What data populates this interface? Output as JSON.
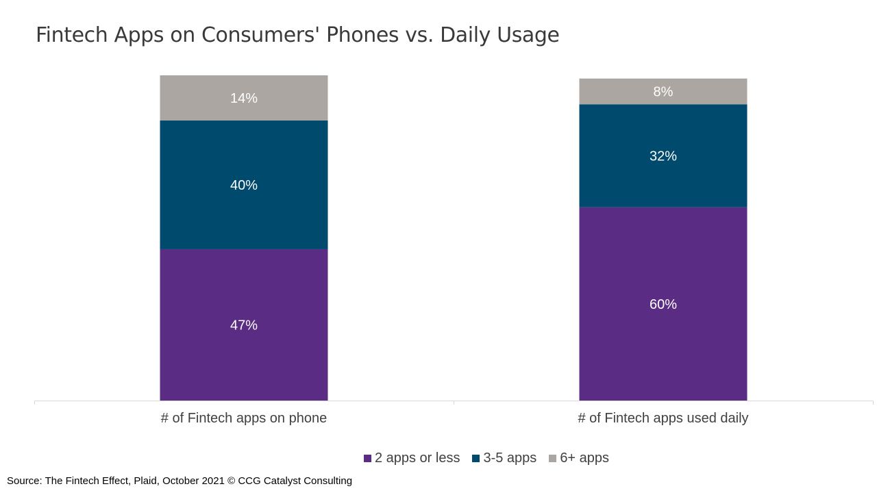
{
  "title": "Fintech Apps on Consumers' Phones vs. Daily Usage",
  "source": "Source: The Fintech Effect, Plaid, October 2021 © CCG Catalyst Consulting",
  "chart_data": {
    "type": "bar",
    "stacked": true,
    "title": "Fintech Apps on Consumers' Phones vs. Daily Usage",
    "categories": [
      "# of Fintech apps on phone",
      "# of Fintech apps used daily"
    ],
    "series": [
      {
        "name": "2 apps or less",
        "values": [
          47,
          60
        ],
        "labels": [
          "47%",
          "60%"
        ],
        "color": "#5b2c83"
      },
      {
        "name": "3-5 apps",
        "values": [
          40,
          32
        ],
        "labels": [
          "40%",
          "32%"
        ],
        "color": "#004a6e"
      },
      {
        "name": "6+ apps",
        "values": [
          14,
          8
        ],
        "labels": [
          "14%",
          "8%"
        ],
        "color": "#aba6a2"
      }
    ],
    "ylim": [
      0,
      101
    ],
    "grid": false,
    "legend": "bottom",
    "axis_color": "#d9d9d9"
  }
}
